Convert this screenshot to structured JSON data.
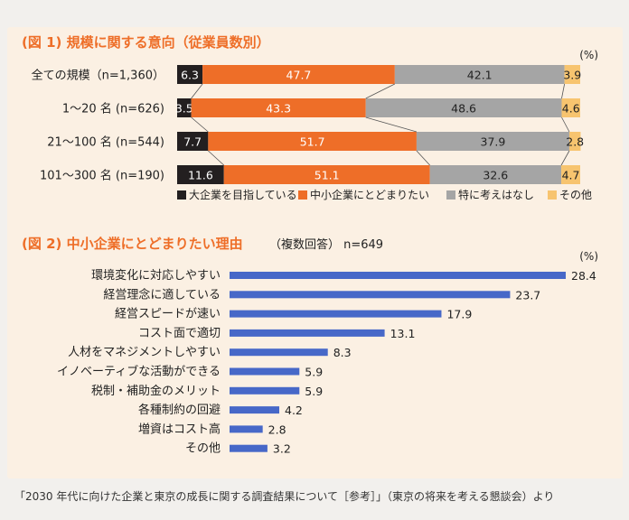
{
  "chart_data": [
    {
      "type": "bar",
      "subtype": "stacked-horizontal-100",
      "title": "(図 1) 規模に関する意向（従業員数別）",
      "unit": "(%)",
      "categories": [
        "全ての規模（n=1,360）",
        "1〜20 名 (n=626)",
        "21〜100 名 (n=544)",
        "101〜300 名 (n=190)"
      ],
      "series": [
        {
          "name": "大企業を目指している",
          "color": "#231f20",
          "values": [
            6.3,
            3.5,
            7.7,
            11.6
          ]
        },
        {
          "name": "中小企業にとどまりたい",
          "color": "#ee6e28",
          "values": [
            47.7,
            43.3,
            51.7,
            51.1
          ]
        },
        {
          "name": "特に考えはなし",
          "color": "#a5a5a5",
          "values": [
            42.1,
            48.6,
            37.9,
            32.6
          ]
        },
        {
          "name": "その他",
          "color": "#f7c46f",
          "values": [
            3.9,
            4.6,
            2.8,
            4.7
          ]
        }
      ],
      "legend_position": "bottom-right"
    },
    {
      "type": "bar",
      "subtype": "horizontal",
      "title": "(図 2) 中小企業にとどまりたい理由",
      "subtitle": "（複数回答） n=649",
      "unit": "(%)",
      "color": "#4768c8",
      "categories": [
        "環境変化に対応しやすい",
        "経営理念に適している",
        "経営スピードが速い",
        "コスト面で適切",
        "人材をマネジメントしやすい",
        "イノベーティブな活動ができる",
        "税制・補助金のメリット",
        "各種制約の回避",
        "増資はコスト高",
        "その他"
      ],
      "values": [
        28.4,
        23.7,
        17.9,
        13.1,
        8.3,
        5.9,
        5.9,
        4.2,
        2.8,
        3.2
      ],
      "xlim": [
        0,
        28.4
      ]
    }
  ],
  "footer": {
    "source": "「2030 年代に向けた企業と東京の成長に関する調査結果について［参考］」（東京の将来を考える懇談会）より"
  }
}
